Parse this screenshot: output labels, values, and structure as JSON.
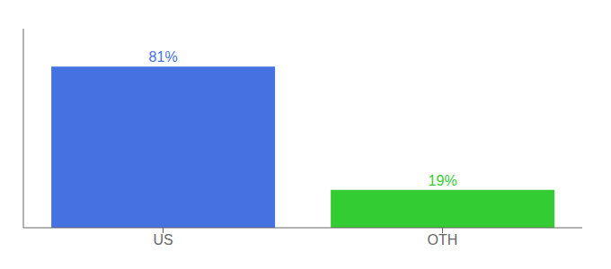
{
  "chart_data": {
    "type": "bar",
    "categories": [
      "US",
      "OTH"
    ],
    "values": [
      81,
      19
    ],
    "value_labels": [
      "81%",
      "19%"
    ],
    "colors": [
      "#4472e0",
      "#33cc33"
    ],
    "ylim": [
      0,
      100
    ],
    "grid": false,
    "data_labels": true,
    "tick_labels": "x"
  }
}
